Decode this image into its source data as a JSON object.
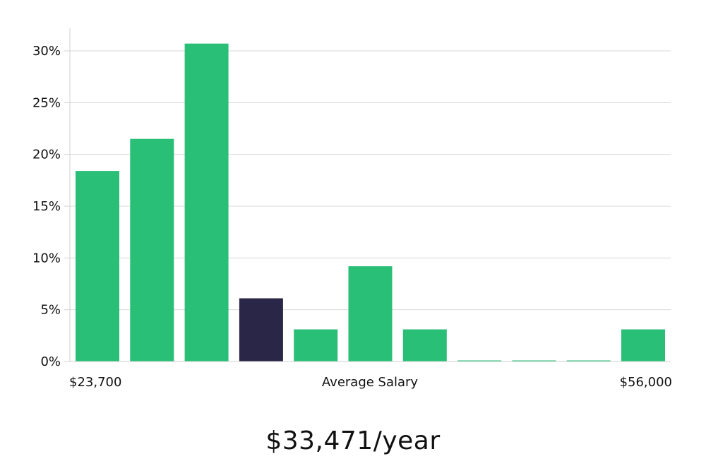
{
  "chart_data": {
    "type": "bar",
    "title": "",
    "xlabel": "Average Salary",
    "ylabel": "",
    "x_min_label": "$23,700",
    "x_max_label": "$56,000",
    "ylim": [
      0,
      32
    ],
    "y_ticks": [
      0,
      5,
      10,
      15,
      20,
      25,
      30
    ],
    "y_tick_labels": [
      "0%",
      "5%",
      "10%",
      "15%",
      "20%",
      "25%",
      "30%"
    ],
    "grid": true,
    "values": [
      18.4,
      21.5,
      30.7,
      6.1,
      3.1,
      9.2,
      3.1,
      0,
      0,
      0,
      3.1
    ],
    "highlight_index": 3,
    "colors": {
      "bar": "#2abf77",
      "highlight": "#2a2647",
      "grid": "#d9d9d9",
      "axis": "#d0d0d0",
      "text": "#111111"
    }
  },
  "summary": {
    "average_label": "$33,471/year"
  }
}
